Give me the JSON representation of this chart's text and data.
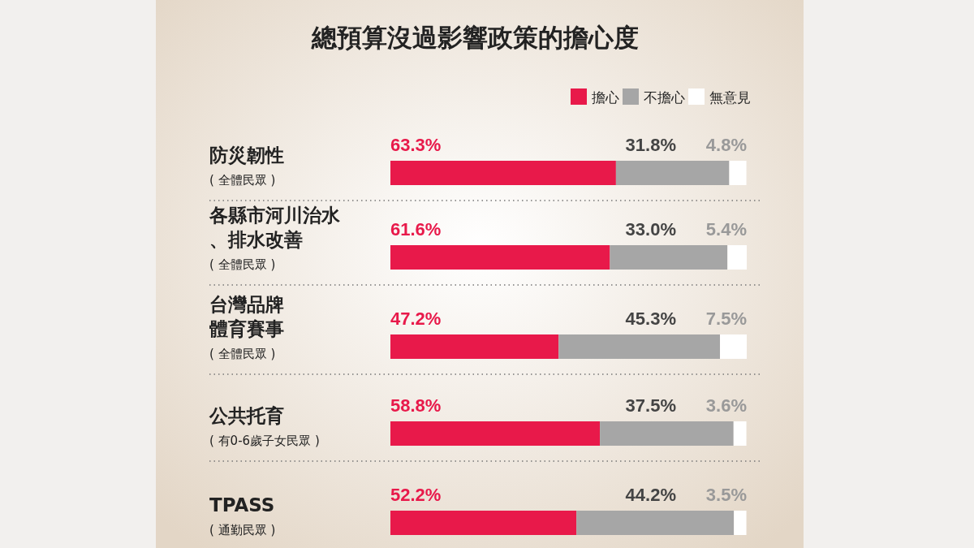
{
  "chart_data": {
    "type": "bar",
    "orientation": "horizontal",
    "stacked": true,
    "legend": "top right",
    "title": "總預算沒過影響政策的擔心度",
    "categories": [
      "防災韌性",
      "各縣市河川治水、排水改善",
      "台灣品牌體育賽事",
      "公共托育",
      "TPASS"
    ],
    "annotations": [
      "( 全體民眾 )",
      "( 全體民眾 )",
      "( 全體民眾 )",
      "( 有0-6歲子女民眾 )",
      "( 通勤民眾 )"
    ],
    "series": [
      {
        "name": "擔心",
        "color": "#e8194a",
        "values": [
          63.3,
          61.6,
          47.2,
          58.8,
          52.2
        ],
        "value_labels": [
          "63.3%",
          "61.6%",
          "47.2%",
          "58.8%",
          "52.2%"
        ]
      },
      {
        "name": "不擔心",
        "color": "#a6a6a6",
        "values": [
          31.8,
          33.0,
          45.3,
          37.5,
          44.2
        ],
        "value_labels": [
          "31.8%",
          "33.0%",
          "45.3%",
          "37.5%",
          "44.2%"
        ]
      },
      {
        "name": "無意見",
        "color": "#ffffff",
        "values": [
          4.8,
          5.4,
          7.5,
          3.6,
          3.5
        ],
        "value_labels": [
          "4.8%",
          "5.4%",
          "7.5%",
          "3.6%",
          "3.5%"
        ]
      }
    ]
  }
}
